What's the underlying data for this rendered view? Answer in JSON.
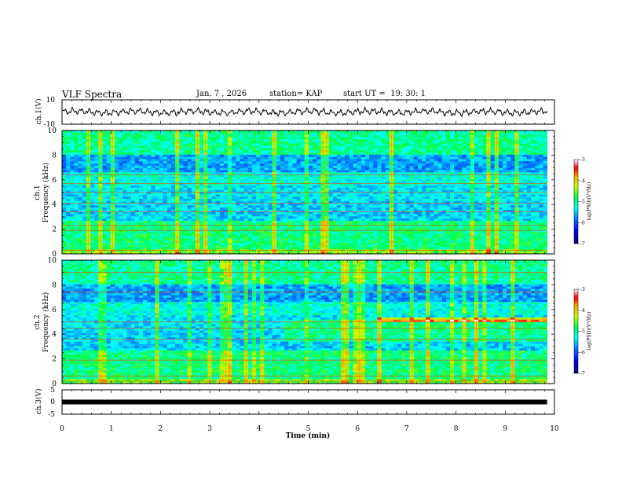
{
  "header": {
    "title": "VLF Spectra",
    "date": "Jan. 7 , 2026",
    "station": "station= KAP",
    "start": "start UT =  19: 30: 1"
  },
  "chart_data": [
    {
      "id": "ch1-waveform",
      "type": "line",
      "ylabel": "ch.1(V)",
      "ylim": [
        -10,
        10
      ],
      "y_ticks": [
        "10",
        "-10"
      ],
      "xlim": [
        0,
        10
      ],
      "series": [
        {
          "name": "ch.1",
          "color": "#000000",
          "amplitude_v": 3,
          "end_min": 9.85
        }
      ]
    },
    {
      "id": "ch1-spectrogram",
      "type": "heatmap",
      "ylabel": "ch.1\nFrequency (kHz)",
      "ylim": [
        0,
        10
      ],
      "y_ticks": [
        "0",
        "2",
        "4",
        "6",
        "8",
        "10"
      ],
      "xlim": [
        0,
        10
      ],
      "data_end_min": 9.85,
      "colorbar": {
        "label": "log(PSD)(V²/Hz)",
        "range": [
          -7,
          -3
        ],
        "ticks": [
          "-3",
          "-4",
          "-5",
          "-6",
          "-7"
        ]
      }
    },
    {
      "id": "ch2-spectrogram",
      "type": "heatmap",
      "ylabel": "ch.2\nFrequency (kHz)",
      "ylim": [
        0,
        10
      ],
      "y_ticks": [
        "0",
        "2",
        "4",
        "6",
        "8",
        "10"
      ],
      "xlim": [
        0,
        10
      ],
      "data_end_min": 9.85,
      "colorbar": {
        "label": "log(PSD)(V²/Hz)",
        "range": [
          -7,
          -3
        ],
        "ticks": [
          "-3",
          "-4",
          "-5",
          "-6",
          "-7"
        ]
      }
    },
    {
      "id": "ch3-level",
      "type": "line",
      "ylabel": "ch.3(V)",
      "ylim": [
        -5,
        5
      ],
      "y_ticks": [
        "5",
        "0",
        "-5"
      ],
      "xlim": [
        0,
        10
      ],
      "xlabel": "Time (min)",
      "x_ticks": [
        "0",
        "1",
        "2",
        "3",
        "4",
        "5",
        "6",
        "7",
        "8",
        "9",
        "10"
      ],
      "series": [
        {
          "name": "ch.3",
          "color": "#000000",
          "value_v": 0,
          "end_min": 9.85
        }
      ]
    }
  ]
}
